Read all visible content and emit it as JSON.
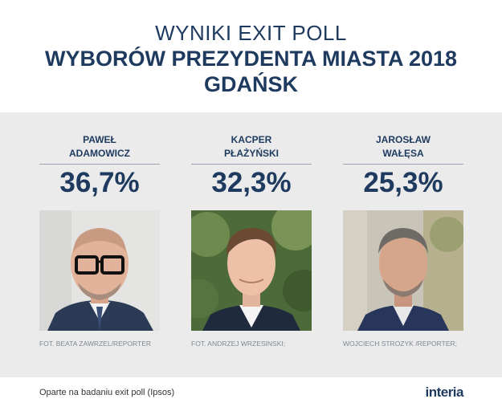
{
  "header": {
    "title_top": "WYNIKI EXIT POLL",
    "title_main": "WYBORÓW PREZYDENTA MIASTA 2018",
    "title_city": "GDAŃSK"
  },
  "candidates": [
    {
      "first": "PAWEŁ",
      "last": "ADAMOWICZ",
      "result": "36,7%",
      "credit": "FOT.  BEATA ZAWRZEL/REPORTER"
    },
    {
      "first": "KACPER",
      "last": "PŁAŻYŃSKI",
      "result": "32,3%",
      "credit": "FOT.  ANDRZEJ WRZESINSKI;"
    },
    {
      "first": "JAROSŁAW",
      "last": "WAŁĘSA",
      "result": "25,3%",
      "credit": "WOJCIECH STROZYK /REPORTER;"
    }
  ],
  "footer": {
    "note": "Oparte na badaniu exit poll (Ipsos)",
    "logo": "interia"
  },
  "colors": {
    "primary": "#1e3a5f",
    "panel": "#ebebeb"
  }
}
